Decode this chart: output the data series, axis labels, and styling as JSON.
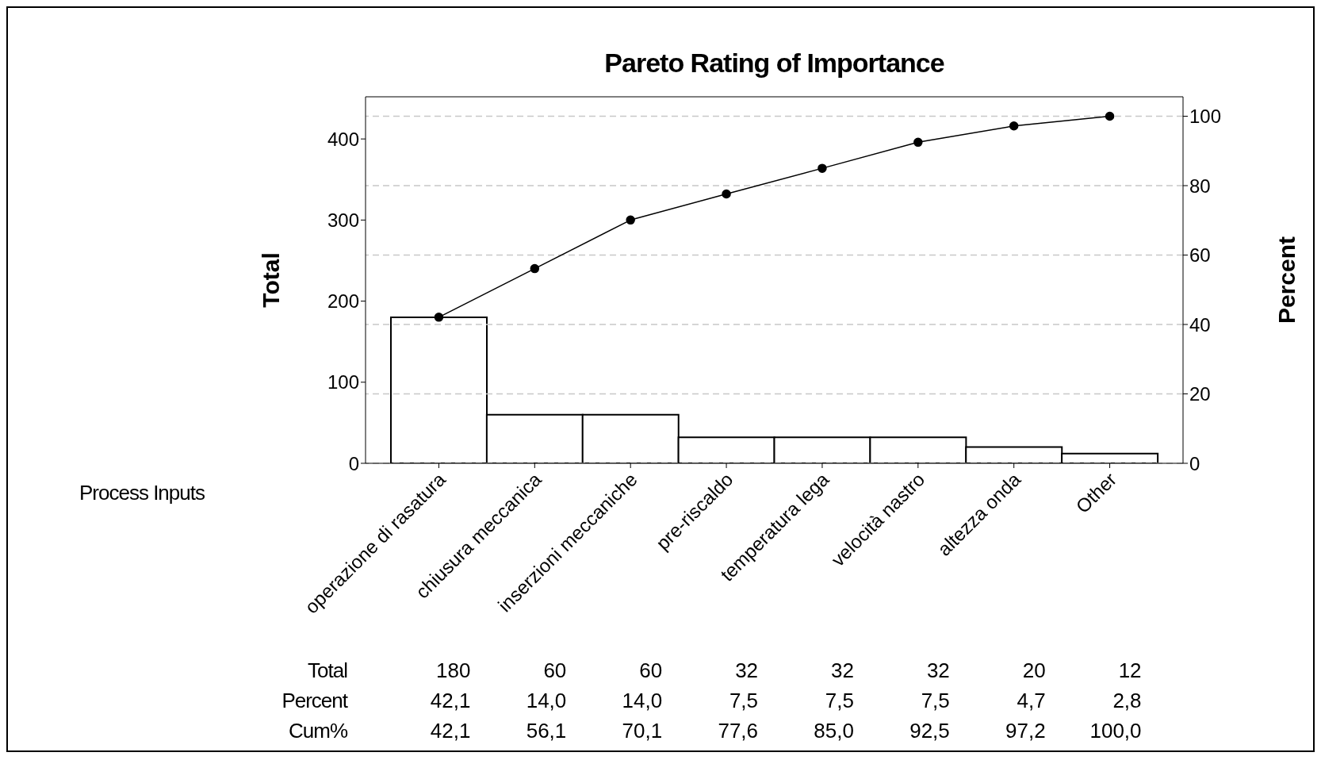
{
  "chart_data": {
    "type": "bar",
    "title": "Pareto Rating of Importance",
    "xlabel": "Process Inputs",
    "ylabel": "Total",
    "y2label": "Percent",
    "categories": [
      "operazione di rasatura",
      "chiusura meccanica",
      "inserzioni meccaniche",
      "pre-riscaldo",
      "temperatura lega",
      "velocità nastro",
      "altezza onda",
      "Other"
    ],
    "series": [
      {
        "color": "#ffffff",
        "values": [
          180,
          60,
          60,
          32,
          32,
          32,
          20,
          12
        ],
        "value_labels": [
          "180",
          "60",
          "60",
          "32",
          "32",
          "32",
          "20",
          "12"
        ]
      },
      {
        "type": "line",
        "axis": "y2",
        "color": "#000000",
        "marker": "circle",
        "values": [
          42.1,
          56.1,
          70.1,
          77.6,
          85.0,
          92.5,
          97.2,
          100.0
        ],
        "value_labels": [
          "42,1",
          "56,1",
          "70,1",
          "77,6",
          "85,0",
          "92,5",
          "97,2",
          "100,0"
        ]
      }
    ],
    "ylim": [
      0,
      452
    ],
    "yticks": [
      0,
      100,
      200,
      300,
      400
    ],
    "y2lim": [
      0,
      105.6
    ],
    "y2ticks": [
      0,
      20,
      40,
      60,
      80,
      100
    ],
    "grid": "y2",
    "legend": false,
    "annotations": [
      "Total",
      "Percent",
      "Cum%",
      "42,1",
      "14,0",
      "14,0",
      "7,5",
      "7,5",
      "7,5",
      "4,7",
      "2,8"
    ]
  }
}
